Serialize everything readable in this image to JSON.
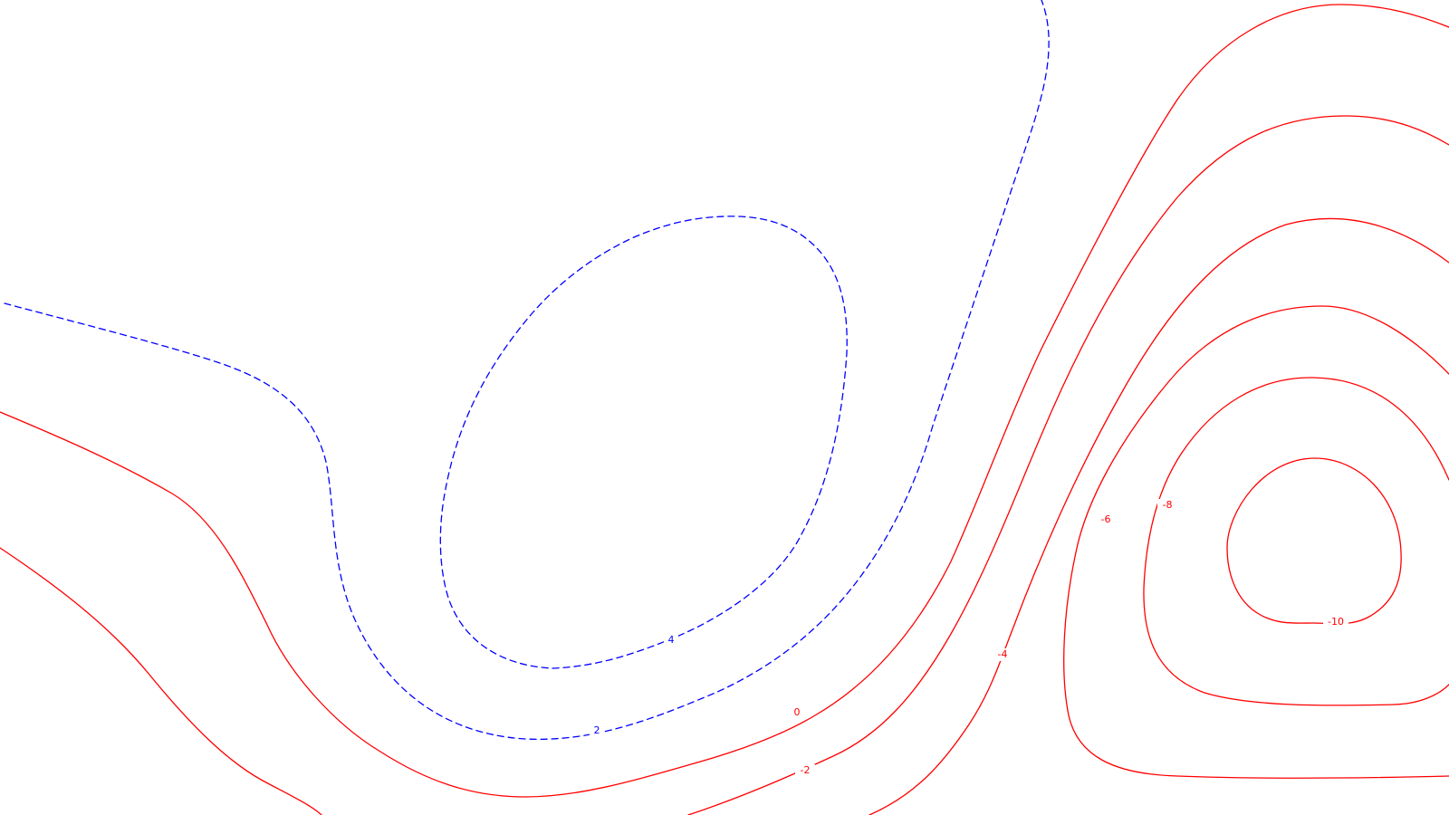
{
  "chart_data": {
    "type": "contour",
    "title": "",
    "xlabel": "",
    "ylabel": "",
    "grid": false,
    "legend": "none",
    "colors": {
      "positive": "#0000ff",
      "negative": "#ff0000",
      "background": "#ffffff"
    },
    "line_styles": {
      "positive": "dashed",
      "nonpositive": "solid"
    },
    "contour_levels": [
      4,
      2,
      0,
      -2,
      -4,
      -6,
      -8,
      -10
    ],
    "contour_labels": [
      {
        "level": 4,
        "text": "4"
      },
      {
        "level": 2,
        "text": "2"
      },
      {
        "level": 0,
        "text": "0"
      },
      {
        "level": -2,
        "text": "-2"
      },
      {
        "level": -4,
        "text": "-4"
      },
      {
        "level": -6,
        "text": "-6"
      },
      {
        "level": -8,
        "text": "-8"
      },
      {
        "level": -10,
        "text": "-10"
      }
    ]
  }
}
